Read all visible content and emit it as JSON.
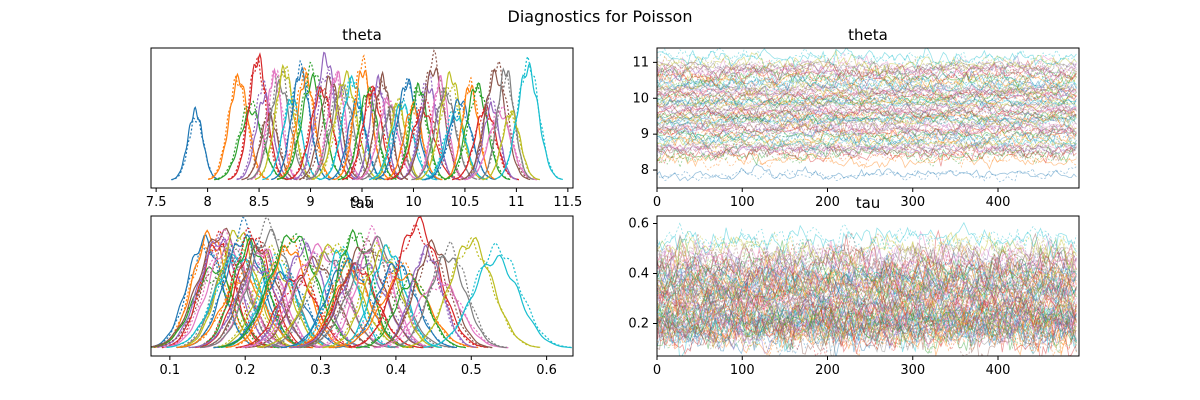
{
  "figure": {
    "title": "Diagnostics for Poisson"
  },
  "palette": [
    "#1f77b4",
    "#ff7f0e",
    "#2ca02c",
    "#d62728",
    "#9467bd",
    "#8c564b",
    "#e377c2",
    "#7f7f7f",
    "#bcbd22",
    "#17becf"
  ],
  "chart_data": [
    {
      "type": "line",
      "kind": "kde",
      "title": "theta",
      "xlabel": "",
      "ylabel": "",
      "xlim": [
        7.45,
        11.55
      ],
      "xticks": [
        7.5,
        8.0,
        8.5,
        9.0,
        9.5,
        10.0,
        10.5,
        11.0,
        11.5
      ],
      "yticks": [],
      "series_count": 50,
      "modes": [
        7.88,
        8.3,
        8.42,
        8.48,
        8.55,
        8.6,
        8.65,
        8.7,
        8.75,
        8.82,
        8.9,
        8.95,
        9.02,
        9.1,
        9.15,
        9.2,
        9.25,
        9.3,
        9.35,
        9.4,
        9.45,
        9.5,
        9.55,
        9.6,
        9.65,
        9.7,
        9.75,
        9.8,
        9.85,
        9.9,
        9.95,
        10.0,
        10.05,
        10.1,
        10.15,
        10.2,
        10.25,
        10.3,
        10.35,
        10.4,
        10.45,
        10.55,
        10.62,
        10.7,
        10.75,
        10.8,
        10.85,
        10.9,
        10.95,
        11.12
      ],
      "spread": 0.09
    },
    {
      "type": "line",
      "kind": "trace",
      "title": "theta",
      "xlabel": "",
      "ylabel": "",
      "xlim": [
        0,
        495
      ],
      "ylim": [
        7.5,
        11.4
      ],
      "xticks": [
        0,
        100,
        200,
        300,
        400
      ],
      "yticks": [
        8,
        9,
        10,
        11
      ],
      "draws": 495,
      "series_count": 50,
      "centers": [
        7.88,
        8.3,
        8.42,
        8.48,
        8.55,
        8.6,
        8.65,
        8.7,
        8.75,
        8.82,
        8.9,
        8.95,
        9.02,
        9.1,
        9.15,
        9.2,
        9.25,
        9.3,
        9.35,
        9.4,
        9.45,
        9.5,
        9.55,
        9.6,
        9.65,
        9.7,
        9.75,
        9.8,
        9.85,
        9.9,
        9.95,
        10.0,
        10.05,
        10.1,
        10.15,
        10.2,
        10.25,
        10.3,
        10.35,
        10.4,
        10.45,
        10.55,
        10.62,
        10.7,
        10.75,
        10.8,
        10.85,
        10.9,
        10.95,
        11.12
      ],
      "noise": 0.09
    },
    {
      "type": "line",
      "kind": "kde",
      "title": "tau",
      "xlabel": "",
      "ylabel": "",
      "xlim": [
        0.075,
        0.635
      ],
      "xticks": [
        0.1,
        0.2,
        0.3,
        0.4,
        0.5,
        0.6
      ],
      "yticks": [],
      "series_count": 50,
      "modes": [
        0.148,
        0.152,
        0.158,
        0.163,
        0.168,
        0.172,
        0.178,
        0.182,
        0.188,
        0.192,
        0.197,
        0.2,
        0.205,
        0.21,
        0.215,
        0.22,
        0.225,
        0.23,
        0.238,
        0.245,
        0.25,
        0.258,
        0.265,
        0.27,
        0.28,
        0.29,
        0.3,
        0.31,
        0.32,
        0.33,
        0.335,
        0.34,
        0.345,
        0.35,
        0.355,
        0.36,
        0.37,
        0.375,
        0.38,
        0.39,
        0.4,
        0.41,
        0.42,
        0.43,
        0.44,
        0.45,
        0.46,
        0.47,
        0.5,
        0.535
      ],
      "spread": 0.026
    },
    {
      "type": "line",
      "kind": "trace",
      "title": "tau",
      "xlabel": "",
      "ylabel": "",
      "xlim": [
        0,
        495
      ],
      "ylim": [
        0.07,
        0.63
      ],
      "xticks": [
        0,
        100,
        200,
        300,
        400
      ],
      "yticks": [
        0.2,
        0.4,
        0.6
      ],
      "draws": 495,
      "series_count": 50,
      "centers": [
        0.148,
        0.152,
        0.158,
        0.163,
        0.168,
        0.172,
        0.178,
        0.182,
        0.188,
        0.192,
        0.197,
        0.2,
        0.205,
        0.21,
        0.215,
        0.22,
        0.225,
        0.23,
        0.238,
        0.245,
        0.25,
        0.258,
        0.265,
        0.27,
        0.28,
        0.29,
        0.3,
        0.31,
        0.32,
        0.33,
        0.335,
        0.34,
        0.345,
        0.35,
        0.355,
        0.36,
        0.37,
        0.375,
        0.38,
        0.39,
        0.4,
        0.41,
        0.42,
        0.43,
        0.44,
        0.45,
        0.46,
        0.47,
        0.5,
        0.535
      ],
      "noise": 0.03
    }
  ]
}
